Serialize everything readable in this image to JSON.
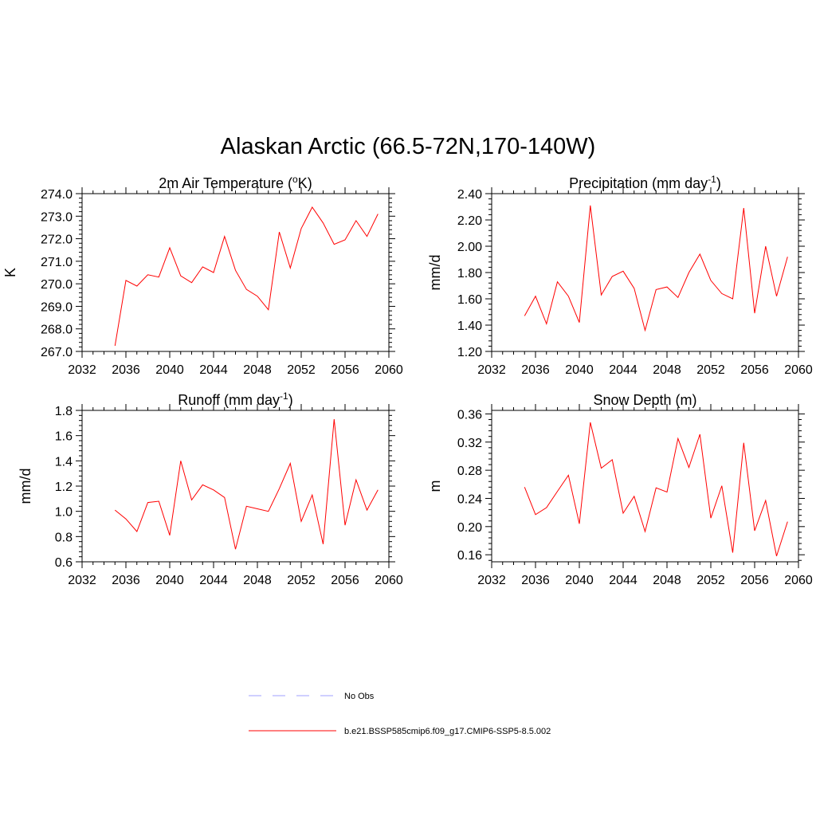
{
  "title": "Alaskan Arctic (66.5-72N,170-140W)",
  "colors": {
    "model_line": "#ff0000",
    "obs_line": "#a0a0ff",
    "axis": "#000000"
  },
  "legend": [
    {
      "label": "No Obs",
      "style": "dashed",
      "color": "#a0a0ff"
    },
    {
      "label": "b.e21.BSSP585cmip6.f09_g17.CMIP6-SSP5-8.5.002",
      "style": "solid",
      "color": "#ff0000"
    }
  ],
  "chart_data": [
    {
      "type": "line",
      "title_main": "2m Air Temperature (",
      "title_sup": "o",
      "title_tail": "K)",
      "ylabel": "K",
      "xlim": [
        2032,
        2060
      ],
      "ylim": [
        267.0,
        274.0
      ],
      "xticks": [
        "2032",
        "2036",
        "2040",
        "2044",
        "2048",
        "2052",
        "2056",
        "2060"
      ],
      "yticks": [
        "267.0",
        "268.0",
        "269.0",
        "270.0",
        "271.0",
        "272.0",
        "273.0",
        "274.0"
      ],
      "series": [
        {
          "x": [
            2035,
            2036,
            2037,
            2038,
            2039,
            2040,
            2041,
            2042,
            2043,
            2044,
            2045,
            2046,
            2047,
            2048,
            2049,
            2050,
            2051,
            2052,
            2053,
            2054,
            2055,
            2056,
            2057,
            2058,
            2059
          ],
          "values": [
            267.25,
            270.15,
            269.9,
            270.4,
            270.3,
            271.6,
            270.35,
            270.05,
            270.75,
            270.5,
            272.1,
            270.6,
            269.75,
            269.45,
            268.85,
            272.3,
            270.7,
            272.45,
            273.4,
            272.7,
            271.75,
            271.95,
            272.8,
            272.1,
            273.1
          ]
        }
      ]
    },
    {
      "type": "line",
      "title_main": "Precipitation (mm day",
      "title_sup": "-1",
      "title_tail": ")",
      "ylabel": "mm/d",
      "xlim": [
        2032,
        2060
      ],
      "ylim": [
        1.2,
        2.4
      ],
      "xticks": [
        "2032",
        "2036",
        "2040",
        "2044",
        "2048",
        "2052",
        "2056",
        "2060"
      ],
      "yticks": [
        "1.20",
        "1.40",
        "1.60",
        "1.80",
        "2.00",
        "2.20",
        "2.40"
      ],
      "series": [
        {
          "x": [
            2035,
            2036,
            2037,
            2038,
            2039,
            2040,
            2041,
            2042,
            2043,
            2044,
            2045,
            2046,
            2047,
            2048,
            2049,
            2050,
            2051,
            2052,
            2053,
            2054,
            2055,
            2056,
            2057,
            2058,
            2059
          ],
          "values": [
            1.47,
            1.62,
            1.41,
            1.73,
            1.62,
            1.42,
            2.31,
            1.63,
            1.77,
            1.81,
            1.68,
            1.36,
            1.67,
            1.69,
            1.61,
            1.8,
            1.94,
            1.74,
            1.64,
            1.6,
            2.29,
            1.49,
            2.0,
            1.62,
            1.92
          ]
        }
      ]
    },
    {
      "type": "line",
      "title_main": "Runoff (mm day",
      "title_sup": "-1",
      "title_tail": ")",
      "ylabel": "mm/d",
      "xlim": [
        2032,
        2060
      ],
      "ylim": [
        0.6,
        1.8
      ],
      "xticks": [
        "2032",
        "2036",
        "2040",
        "2044",
        "2048",
        "2052",
        "2056",
        "2060"
      ],
      "yticks": [
        "0.6",
        "0.8",
        "1.0",
        "1.2",
        "1.4",
        "1.6",
        "1.8"
      ],
      "series": [
        {
          "x": [
            2035,
            2036,
            2037,
            2038,
            2039,
            2040,
            2041,
            2042,
            2043,
            2044,
            2045,
            2046,
            2047,
            2048,
            2049,
            2050,
            2051,
            2052,
            2053,
            2054,
            2055,
            2056,
            2057,
            2058,
            2059
          ],
          "values": [
            1.01,
            0.94,
            0.84,
            1.07,
            1.08,
            0.81,
            1.4,
            1.09,
            1.21,
            1.17,
            1.11,
            0.7,
            1.04,
            1.02,
            1.0,
            1.18,
            1.38,
            0.92,
            1.13,
            0.74,
            1.73,
            0.89,
            1.25,
            1.01,
            1.17
          ]
        }
      ]
    },
    {
      "type": "line",
      "title_main": "Snow Depth (m)",
      "title_sup": "",
      "title_tail": "",
      "ylabel": "m",
      "xlim": [
        2032,
        2060
      ],
      "ylim": [
        0.15,
        0.365
      ],
      "xticks": [
        "2032",
        "2036",
        "2040",
        "2044",
        "2048",
        "2052",
        "2056",
        "2060"
      ],
      "yticks": [
        "0.16",
        "0.20",
        "0.24",
        "0.28",
        "0.32",
        "0.36"
      ],
      "ytick_values": [
        0.16,
        0.2,
        0.24,
        0.28,
        0.32,
        0.36
      ],
      "series": [
        {
          "x": [
            2035,
            2036,
            2037,
            2038,
            2039,
            2040,
            2041,
            2042,
            2043,
            2044,
            2045,
            2046,
            2047,
            2048,
            2049,
            2050,
            2051,
            2052,
            2053,
            2054,
            2055,
            2056,
            2057,
            2058,
            2059
          ],
          "values": [
            0.256,
            0.217,
            0.227,
            0.25,
            0.273,
            0.204,
            0.348,
            0.283,
            0.295,
            0.219,
            0.243,
            0.193,
            0.255,
            0.249,
            0.325,
            0.284,
            0.331,
            0.212,
            0.258,
            0.163,
            0.319,
            0.194,
            0.237,
            0.158,
            0.207
          ]
        }
      ]
    }
  ]
}
